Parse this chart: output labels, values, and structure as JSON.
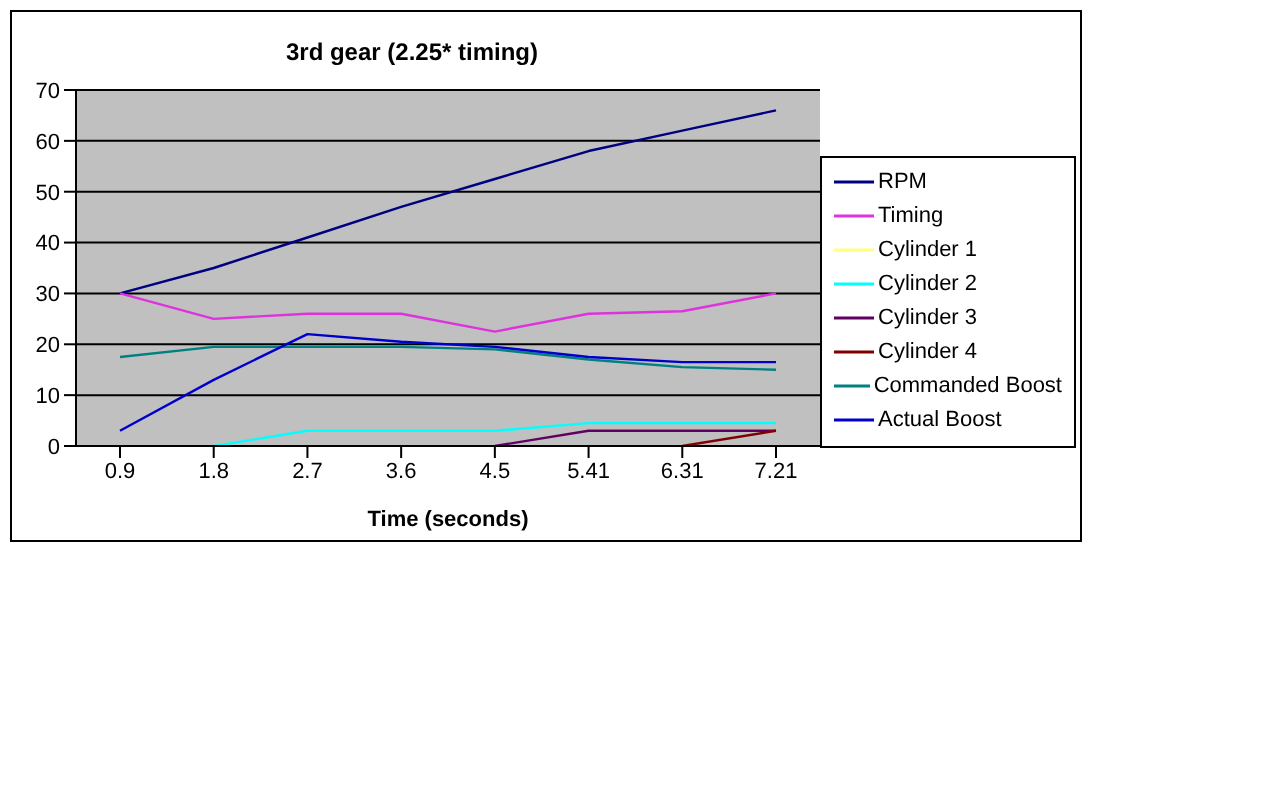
{
  "chart_data": {
    "type": "line",
    "title": "3rd gear (2.25* timing)",
    "xlabel": "Time (seconds)",
    "categories": [
      "0.9",
      "1.8",
      "2.7",
      "3.6",
      "4.5",
      "5.41",
      "6.31",
      "7.21"
    ],
    "series": [
      {
        "name": "RPM",
        "color": "#000080",
        "values": [
          30,
          35,
          41,
          47,
          52.5,
          58,
          62,
          66
        ]
      },
      {
        "name": "Timing",
        "color": "#dd33dd",
        "values": [
          30,
          25,
          26,
          26,
          22.5,
          26,
          26.5,
          30
        ]
      },
      {
        "name": "Cylinder 1",
        "color": "#ffff80",
        "values": [
          null,
          null,
          null,
          null,
          null,
          null,
          null,
          null
        ]
      },
      {
        "name": "Cylinder 2",
        "color": "#00ffff",
        "values": [
          null,
          0,
          3,
          3,
          3,
          4.5,
          4.5,
          4.5
        ]
      },
      {
        "name": "Cylinder 3",
        "color": "#600060",
        "values": [
          null,
          null,
          null,
          null,
          0,
          3,
          3,
          3
        ]
      },
      {
        "name": "Cylinder 4",
        "color": "#800000",
        "values": [
          null,
          null,
          null,
          null,
          null,
          null,
          0,
          3
        ]
      },
      {
        "name": "Commanded Boost",
        "color": "#008080",
        "values": [
          17.5,
          19.5,
          19.5,
          19.5,
          19,
          17,
          15.5,
          15
        ]
      },
      {
        "name": "Actual Boost",
        "color": "#0000cc",
        "values": [
          3,
          13,
          22,
          20.5,
          19.5,
          17.5,
          16.5,
          16.5
        ]
      }
    ],
    "ylim": [
      0,
      70
    ],
    "yticks": [
      0,
      10,
      20,
      30,
      40,
      50,
      60,
      70
    ],
    "grid": "y",
    "legend": "right",
    "marker": "none"
  }
}
